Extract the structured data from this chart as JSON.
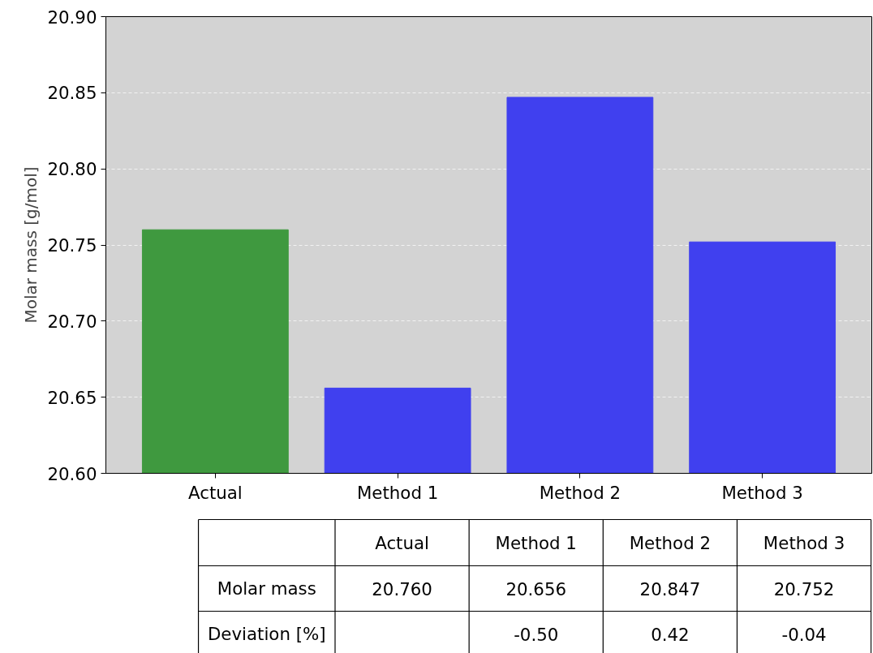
{
  "chart_data": {
    "type": "bar",
    "ylabel": "Molar mass [g/mol]",
    "categories": [
      "Actual",
      "Method 1",
      "Method 2",
      "Method 3"
    ],
    "values": [
      20.76,
      20.656,
      20.847,
      20.752
    ],
    "colors": [
      "#3f993f",
      "#4040ef",
      "#4040ef",
      "#4040ef"
    ],
    "ylim": [
      20.6,
      20.9
    ],
    "yticks": [
      {
        "value": 20.6,
        "label": "20.60"
      },
      {
        "value": 20.65,
        "label": "20.65"
      },
      {
        "value": 20.7,
        "label": "20.70"
      },
      {
        "value": 20.75,
        "label": "20.75"
      },
      {
        "value": 20.8,
        "label": "20.80"
      },
      {
        "value": 20.85,
        "label": "20.85"
      },
      {
        "value": 20.9,
        "label": "20.90"
      }
    ],
    "grid": "y",
    "annotations": [
      "Molar mass",
      "20.760",
      "20.656",
      "20.847",
      "20.752",
      "Deviation [%]",
      "-0.50",
      "0.42",
      "-0.04"
    ]
  }
}
